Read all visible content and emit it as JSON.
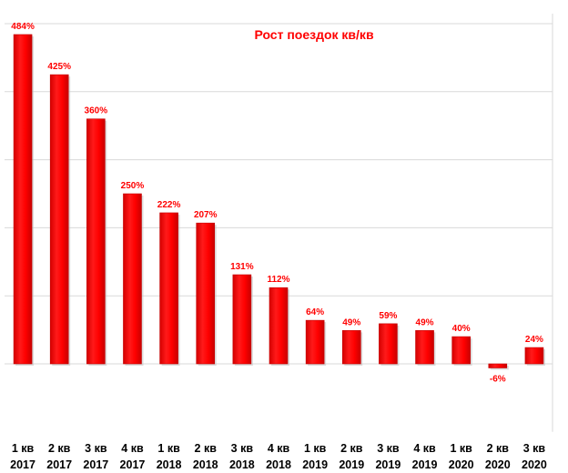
{
  "chart_data": {
    "type": "bar",
    "title": "Рост поездок кв/кв",
    "xlabel": "",
    "ylabel": "",
    "categories": [
      [
        "1 кв",
        "2017"
      ],
      [
        "2 кв",
        "2017"
      ],
      [
        "3 кв",
        "2017"
      ],
      [
        "4 кв",
        "2017"
      ],
      [
        "1 кв",
        "2018"
      ],
      [
        "2 кв",
        "2018"
      ],
      [
        "3 кв",
        "2018"
      ],
      [
        "4 кв",
        "2018"
      ],
      [
        "1 кв",
        "2019"
      ],
      [
        "2 кв",
        "2019"
      ],
      [
        "3 кв",
        "2019"
      ],
      [
        "4 кв",
        "2019"
      ],
      [
        "1 кв",
        "2020"
      ],
      [
        "2 кв",
        "2020"
      ],
      [
        "3 кв",
        "2020"
      ]
    ],
    "values": [
      484,
      425,
      360,
      250,
      222,
      207,
      131,
      112,
      64,
      49,
      59,
      49,
      40,
      -6,
      24
    ],
    "value_labels": [
      "484%",
      "425%",
      "360%",
      "250%",
      "222%",
      "207%",
      "131%",
      "112%",
      "64%",
      "49%",
      "59%",
      "49%",
      "40%",
      "-6%",
      "24%"
    ],
    "ylim": [
      -100,
      500
    ],
    "gridlines": true,
    "bar_color": "#ff0000",
    "label_color": "#ff0000",
    "legend": "none"
  }
}
